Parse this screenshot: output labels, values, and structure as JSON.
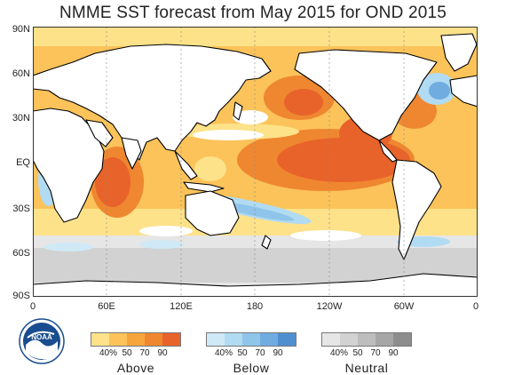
{
  "title": "NMME SST forecast from May 2015 for OND 2015",
  "map": {
    "lat_labels": [
      "90N",
      "60N",
      "30N",
      "EQ",
      "30S",
      "60S",
      "90S"
    ],
    "lon_labels": [
      "0",
      "60E",
      "120E",
      "180",
      "120W",
      "60W",
      "0"
    ],
    "colors": {
      "above": [
        "#fde28a",
        "#fbc35a",
        "#f6a53d",
        "#ef8730",
        "#e8632a"
      ],
      "below": [
        "#cfe9f6",
        "#b1dbf2",
        "#8fc5ea",
        "#70acdf",
        "#4f8fd0"
      ],
      "neutral": [
        "#e6e6e6",
        "#d2d2d2",
        "#bdbdbd",
        "#a6a6a6",
        "#8d8d8d"
      ],
      "land": "#ffffff",
      "coast": "#000000"
    }
  },
  "legend": {
    "above": {
      "name": "Above",
      "ticks": [
        "40%",
        "50",
        "70",
        "90"
      ]
    },
    "below": {
      "name": "Below",
      "ticks": [
        "40%",
        "50",
        "70",
        "90"
      ]
    },
    "neutral": {
      "name": "Neutral",
      "ticks": [
        "40%",
        "50",
        "70",
        "90"
      ]
    }
  },
  "logo": {
    "text": "NOAA"
  }
}
